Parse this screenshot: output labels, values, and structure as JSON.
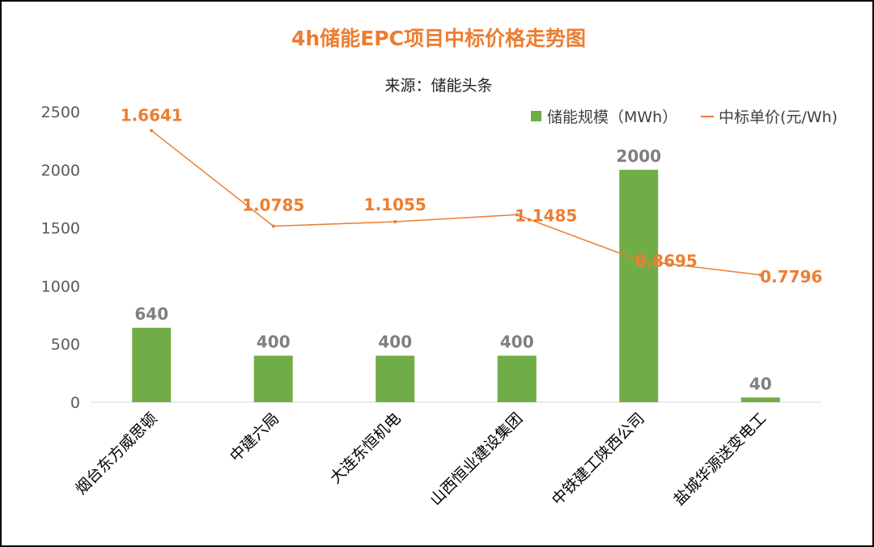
{
  "chart_data": {
    "type": "bar+line",
    "title": "4h储能EPC项目中标价格走势图",
    "subtitle": "来源：储能头条",
    "categories": [
      "烟台东方威思顿",
      "中建六局",
      "大连东恒机电",
      "山西恒业建设集团",
      "中铁建工陕西公司",
      "盐城华源送变电工"
    ],
    "series": [
      {
        "name": "储能规模（MWh）",
        "type": "bar",
        "axis": "primary",
        "values": [
          640,
          400,
          400,
          400,
          2000,
          40
        ],
        "labels": [
          "640",
          "400",
          "400",
          "400",
          "2000",
          "40"
        ],
        "color": "#70ad47"
      },
      {
        "name": "中标单价(元/Wh)",
        "type": "line",
        "axis": "secondary",
        "values": [
          1.6641,
          1.0785,
          1.1055,
          1.1485,
          0.8695,
          0.7796
        ],
        "labels": [
          "1.6641",
          "1.0785",
          "1.1055",
          "1.1485",
          "0.8695",
          "0.7796"
        ],
        "color": "#ed7d31"
      }
    ],
    "ylim": [
      0,
      2500
    ],
    "yticks": [
      "0",
      "500",
      "1000",
      "1500",
      "2000",
      "2500"
    ],
    "y2lim": [
      0,
      1.8
    ],
    "y2_visible": false,
    "grid": false,
    "legend": "top-right",
    "title_color": "#ed7d31"
  }
}
